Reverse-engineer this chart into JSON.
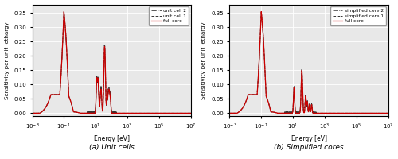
{
  "subplot_titles": [
    "(a) Unit cells",
    "(b) Simplified cores"
  ],
  "ylabel": "Sensitivity per unit lethargy",
  "xlabel": "Energy [eV]",
  "xlim": [
    0.001,
    10000000.0
  ],
  "ylim": [
    -0.01,
    0.38
  ],
  "yticks": [
    0.0,
    0.05,
    0.1,
    0.15,
    0.2,
    0.25,
    0.3,
    0.35
  ],
  "legend1": [
    "full core",
    "unit cell 1",
    "unit cell 2"
  ],
  "legend2": [
    "full core",
    "simplified core 1",
    "simplified core 2"
  ],
  "colors": {
    "full_core": "#cc0000",
    "uc1": "#333333",
    "uc2": "#555555",
    "sc1": "#333333",
    "sc2": "#666666"
  },
  "background_color": "#e8e8e8"
}
